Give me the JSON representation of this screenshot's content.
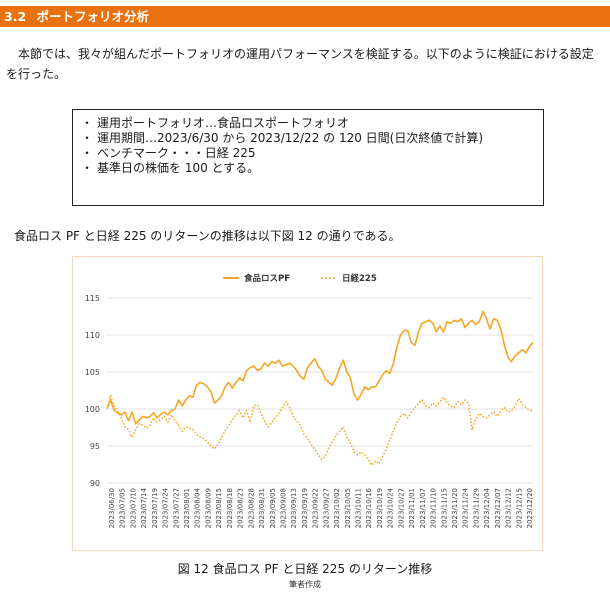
{
  "section": {
    "number": "3.2",
    "title": "ポートフォリオ分析"
  },
  "intro": "　本節では、我々が組んだポートフォリオの運用パフォーマンスを検証する。以下のように検証における設定を行った。",
  "settings": [
    "運用ポートフォリオ…食品ロスポートフォリオ",
    "運用期間…2023/6/30 から 2023/12/22 の 120 日間(日次終値で計算)",
    "ベンチマーク・・・日経 225",
    "基準日の株価を 100 とする。"
  ],
  "bullet_glyph": "・",
  "lead_text": "食品ロス PF と日経 225 のリターンの推移は以下図 12 の通りである。",
  "figure_caption": "図 12  食品ロス PF と日経 225 のリターン推移",
  "figure_source": "筆者作成",
  "colors": {
    "accent": "#E9720F",
    "series_pf": "#F5A623",
    "series_nikkei": "#F5A623"
  },
  "chart_data": {
    "type": "line",
    "title": "",
    "xlabel": "",
    "ylabel": "",
    "ylim": [
      90,
      115
    ],
    "yticks": [
      90,
      95,
      100,
      105,
      110,
      115
    ],
    "grid": true,
    "legend": "top-center",
    "x_tick_labels": [
      "2023/06/30",
      "2023/07/05",
      "2023/07/10",
      "2023/07/14",
      "2023/07/19",
      "2023/07/24",
      "2023/07/27",
      "2023/08/01",
      "2023/08/04",
      "2023/08/09",
      "2023/08/15",
      "2023/08/18",
      "2023/08/23",
      "2023/08/28",
      "2023/08/31",
      "2023/09/05",
      "2023/09/08",
      "2023/09/13",
      "2023/09/19",
      "2023/09/22",
      "2023/09/27",
      "2023/10/02",
      "2023/10/05",
      "2023/10/11",
      "2023/10/16",
      "2023/10/19",
      "2023/10/24",
      "2023/10/27",
      "2023/11/01",
      "2023/11/07",
      "2023/11/10",
      "2023/11/15",
      "2023/11/20",
      "2023/11/24",
      "2023/11/29",
      "2023/12/04",
      "2023/12/07",
      "2023/12/12",
      "2023/12/15",
      "2023/12/20"
    ],
    "series": [
      {
        "name": "食品ロスPF",
        "style": "solid",
        "values": [
          100.0,
          101.2,
          99.8,
          99.5,
          99.2,
          99.6,
          98.4,
          99.6,
          98.0,
          98.5,
          99.0,
          98.8,
          99.0,
          99.5,
          98.8,
          99.3,
          99.6,
          99.2,
          99.8,
          100.0,
          101.2,
          100.4,
          101.2,
          101.8,
          101.6,
          103.2,
          103.6,
          103.4,
          103.0,
          102.4,
          100.8,
          101.2,
          101.8,
          103.0,
          103.6,
          102.8,
          103.6,
          104.2,
          103.8,
          105.2,
          105.6,
          105.8,
          105.2,
          105.4,
          106.2,
          105.8,
          106.4,
          106.2,
          106.6,
          105.8,
          106.0,
          106.2,
          105.8,
          105.2,
          104.4,
          104.0,
          105.6,
          106.2,
          106.8,
          105.8,
          105.2,
          104.0,
          103.6,
          103.2,
          104.2,
          105.6,
          106.6,
          105.0,
          104.2,
          102.0,
          101.2,
          102.0,
          103.0,
          102.6,
          103.0,
          103.0,
          103.8,
          104.6,
          105.2,
          104.8,
          106.2,
          108.4,
          110.0,
          110.6,
          110.6,
          109.0,
          108.6,
          110.4,
          111.6,
          111.8,
          112.0,
          111.6,
          110.4,
          111.2,
          110.4,
          111.8,
          111.6,
          112.0,
          111.8,
          112.2,
          111.0,
          111.6,
          112.0,
          111.4,
          111.8,
          113.2,
          112.2,
          110.8,
          112.2,
          112.0,
          110.8,
          108.6,
          107.0,
          106.4,
          107.2,
          107.6,
          108.0,
          107.6,
          108.4,
          109.0
        ]
      },
      {
        "name": "日経225",
        "style": "dotted",
        "values": [
          100.0,
          101.8,
          100.4,
          99.6,
          98.8,
          97.6,
          97.2,
          96.2,
          97.2,
          98.0,
          97.8,
          97.4,
          97.8,
          98.8,
          98.2,
          98.6,
          99.0,
          98.2,
          99.2,
          98.4,
          97.8,
          97.0,
          97.6,
          97.4,
          97.2,
          96.6,
          96.2,
          96.0,
          95.6,
          95.0,
          94.6,
          95.2,
          96.2,
          97.0,
          97.8,
          98.6,
          99.2,
          99.8,
          98.8,
          99.8,
          98.2,
          100.4,
          100.6,
          99.4,
          98.4,
          97.6,
          98.2,
          98.8,
          99.4,
          100.2,
          101.0,
          100.2,
          99.0,
          98.4,
          97.8,
          96.6,
          96.0,
          95.2,
          94.6,
          93.8,
          93.2,
          93.6,
          94.8,
          95.6,
          96.4,
          97.0,
          97.6,
          96.2,
          95.4,
          94.2,
          93.8,
          94.2,
          93.8,
          93.2,
          92.4,
          93.0,
          92.6,
          93.6,
          94.6,
          95.8,
          97.0,
          98.2,
          99.0,
          99.4,
          98.8,
          99.6,
          100.2,
          100.8,
          101.2,
          100.4,
          100.2,
          100.8,
          100.4,
          101.0,
          101.6,
          100.8,
          100.4,
          100.2,
          101.0,
          100.6,
          101.2,
          100.8,
          97.2,
          98.6,
          99.4,
          99.0,
          98.8,
          99.2,
          99.6,
          99.0,
          99.8,
          100.2,
          99.6,
          99.8,
          100.4,
          101.4,
          100.6,
          100.2,
          99.8,
          99.8
        ]
      }
    ]
  }
}
